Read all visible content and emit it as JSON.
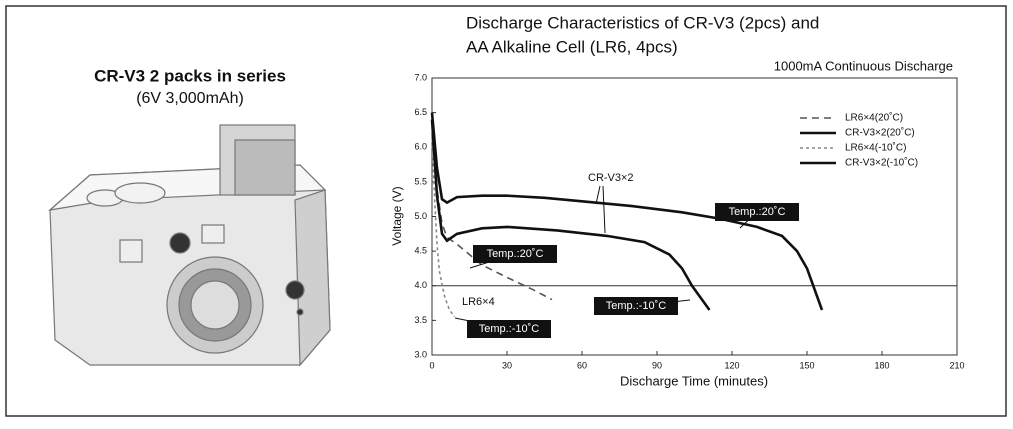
{
  "heading": {
    "title": "CR-V3 2 packs in series",
    "subtitle": "(6V 3,000mAh)"
  },
  "chart_data": {
    "type": "line",
    "title": [
      "Discharge Characteristics of CR-V3 (2pcs) and",
      "AA Alkaline Cell (LR6, 4pcs)"
    ],
    "subtitle": "1000mA Continuous Discharge",
    "x_label": "Discharge Time (minutes)",
    "y_label": "Voltage (V)",
    "xlim": [
      0,
      210
    ],
    "xticks": [
      0,
      30,
      60,
      90,
      120,
      150,
      180,
      210
    ],
    "ylim": [
      3.0,
      7.0
    ],
    "yticks": [
      {
        "value": 3.0,
        "label": "3.0"
      },
      3.5,
      {
        "value": 4.0,
        "label": "4.0"
      },
      4.5,
      {
        "value": 5.0,
        "label": "5.0"
      },
      5.5,
      {
        "value": 6.0,
        "label": "6.0"
      },
      6.5,
      {
        "value": 7.0,
        "label": "7.0"
      }
    ],
    "reference_line": 4.0,
    "legend": "top-right",
    "series": [
      {
        "name": "LR6×4(20˚C)",
        "color": "#555555",
        "style": "dashed",
        "x": [
          0,
          2,
          4,
          6,
          10,
          15,
          20,
          30,
          40,
          48
        ],
        "values": [
          6.4,
          5.4,
          4.9,
          4.7,
          4.6,
          4.45,
          4.3,
          4.12,
          3.95,
          3.8
        ]
      },
      {
        "name": "CR-V3×2(20˚C)",
        "color": "#111111",
        "style": "solid",
        "x": [
          0,
          2,
          4,
          6,
          10,
          20,
          30,
          45,
          60,
          80,
          100,
          115,
          130,
          140,
          146,
          150,
          153,
          156
        ],
        "values": [
          6.5,
          5.7,
          5.25,
          5.2,
          5.28,
          5.3,
          5.3,
          5.27,
          5.22,
          5.15,
          5.06,
          4.97,
          4.85,
          4.72,
          4.5,
          4.25,
          3.95,
          3.65
        ]
      },
      {
        "name": "LR6×4(-10˚C)",
        "color": "#888888",
        "style": "dotted",
        "x": [
          0,
          1,
          2,
          3,
          5,
          7,
          9
        ],
        "values": [
          6.2,
          5.3,
          4.6,
          4.2,
          3.85,
          3.65,
          3.55
        ]
      },
      {
        "name": "CR-V3×2(-10˚C)",
        "color": "#111111",
        "style": "solid",
        "x": [
          0,
          2,
          4,
          6,
          10,
          20,
          30,
          50,
          70,
          85,
          95,
          100,
          104,
          108,
          111
        ],
        "values": [
          6.4,
          5.3,
          4.75,
          4.65,
          4.75,
          4.83,
          4.85,
          4.8,
          4.72,
          4.63,
          4.45,
          4.25,
          4.0,
          3.8,
          3.65
        ]
      }
    ],
    "annotations": [
      "CR-V3×2",
      "Temp.:20˚C",
      "Temp.:20˚C",
      "Temp.:-10˚C",
      "LR6×4",
      "Temp.:-10˚C"
    ]
  }
}
